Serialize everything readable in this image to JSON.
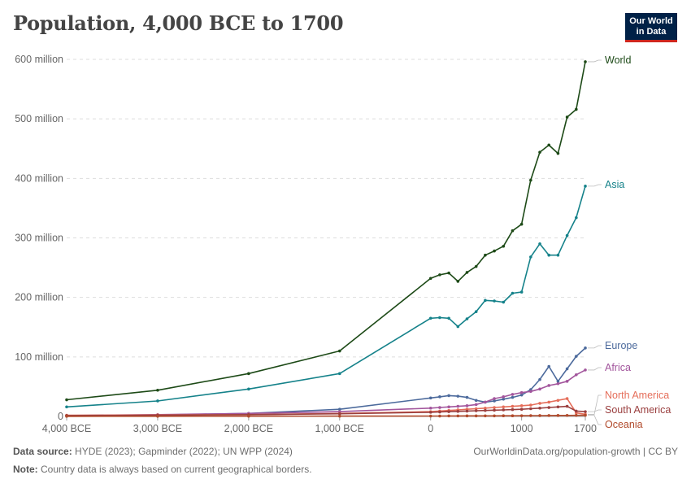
{
  "header": {
    "title": "Population, 4,000 BCE to 1700",
    "logo_line1": "Our World",
    "logo_line2": "in Data"
  },
  "footer": {
    "source_label": "Data source:",
    "source_text": "HYDE (2023); Gapminder (2022); UN WPP (2024)",
    "note_label": "Note:",
    "note_text": "Country data is always based on current geographical borders.",
    "url_text": "OurWorldinData.org/population-growth | CC BY"
  },
  "chart_data": {
    "type": "line",
    "title": "Population, 4,000 BCE to 1700",
    "xlabel": "",
    "ylabel": "",
    "x_ticks": [
      {
        "value": -4000,
        "label": "4,000 BCE"
      },
      {
        "value": -3000,
        "label": "3,000 BCE"
      },
      {
        "value": -2000,
        "label": "2,000 BCE"
      },
      {
        "value": -1000,
        "label": "1,000 BCE"
      },
      {
        "value": 0,
        "label": "0"
      },
      {
        "value": 1000,
        "label": "1000"
      },
      {
        "value": 1700,
        "label": "1700"
      }
    ],
    "y_ticks": [
      {
        "value": 0,
        "label": "0"
      },
      {
        "value": 100000000,
        "label": "100 million"
      },
      {
        "value": 200000000,
        "label": "200 million"
      },
      {
        "value": 300000000,
        "label": "300 million"
      },
      {
        "value": 400000000,
        "label": "400 million"
      },
      {
        "value": 500000000,
        "label": "500 million"
      },
      {
        "value": 600000000,
        "label": "600 million"
      }
    ],
    "xlim": [
      -4000,
      1700
    ],
    "ylim": [
      0,
      600000000
    ],
    "grid": "horizontal dashed",
    "legend": "right-end labels",
    "series": [
      {
        "name": "World",
        "color": "#1d4a17",
        "x": [
          -4000,
          -3000,
          -2000,
          -1000,
          0,
          100,
          200,
          300,
          400,
          500,
          600,
          700,
          800,
          900,
          1000,
          1100,
          1200,
          1300,
          1400,
          1500,
          1600,
          1700
        ],
        "y": [
          28000000,
          44000000,
          72000000,
          110000000,
          232000000,
          238000000,
          241000000,
          227000000,
          242000000,
          252000000,
          271000000,
          278000000,
          286000000,
          312000000,
          323000000,
          397000000,
          444000000,
          456000000,
          442000000,
          503000000,
          516000000,
          596000000
        ]
      },
      {
        "name": "Asia",
        "color": "#15828a",
        "x": [
          -4000,
          -3000,
          -2000,
          -1000,
          0,
          100,
          200,
          300,
          400,
          500,
          600,
          700,
          800,
          900,
          1000,
          1100,
          1200,
          1300,
          1400,
          1500,
          1600,
          1700
        ],
        "y": [
          16000000,
          26000000,
          46000000,
          72000000,
          165000000,
          166000000,
          165000000,
          151000000,
          164000000,
          176000000,
          195000000,
          194000000,
          192000000,
          207000000,
          209000000,
          268000000,
          290000000,
          271000000,
          271000000,
          304000000,
          334000000,
          387000000
        ]
      },
      {
        "name": "Europe",
        "color": "#4c6a9c",
        "x": [
          -4000,
          -3000,
          -2000,
          -1000,
          0,
          100,
          200,
          300,
          400,
          500,
          600,
          700,
          800,
          900,
          1000,
          1100,
          1200,
          1300,
          1400,
          1500,
          1600,
          1700
        ],
        "y": [
          1000000,
          2500000,
          5000000,
          12000000,
          31000000,
          33000000,
          35000000,
          34000000,
          32000000,
          27000000,
          24000000,
          26000000,
          29000000,
          32000000,
          36000000,
          45000000,
          62000000,
          84000000,
          59000000,
          80000000,
          101000000,
          115000000
        ]
      },
      {
        "name": "Africa",
        "color": "#a2559c",
        "x": [
          -4000,
          -3000,
          -2000,
          -1000,
          0,
          100,
          200,
          300,
          400,
          500,
          600,
          700,
          800,
          900,
          1000,
          1100,
          1200,
          1300,
          1400,
          1500,
          1600,
          1700
        ],
        "y": [
          1500000,
          3000000,
          5000000,
          8000000,
          14000000,
          15000000,
          16000000,
          17000000,
          18000000,
          20000000,
          24000000,
          30000000,
          33000000,
          37000000,
          40000000,
          42000000,
          46000000,
          52000000,
          55000000,
          59000000,
          70000000,
          78000000
        ]
      },
      {
        "name": "North America",
        "color": "#e56e5a",
        "x": [
          -4000,
          -3000,
          -2000,
          -1000,
          0,
          100,
          200,
          300,
          400,
          500,
          600,
          700,
          800,
          900,
          1000,
          1100,
          1200,
          1300,
          1400,
          1500,
          1600,
          1700
        ],
        "y": [
          2000000,
          2500000,
          3000000,
          5000000,
          8000000,
          9000000,
          10000000,
          11000000,
          12000000,
          13000000,
          14000000,
          15000000,
          16000000,
          17000000,
          18000000,
          19000000,
          22000000,
          24000000,
          27000000,
          30000000,
          6000000,
          3500000
        ]
      },
      {
        "name": "South America",
        "color": "#9a3f3f",
        "x": [
          -4000,
          -3000,
          -2000,
          -1000,
          0,
          100,
          200,
          300,
          400,
          500,
          600,
          700,
          800,
          900,
          1000,
          1100,
          1200,
          1300,
          1400,
          1500,
          1600,
          1700
        ],
        "y": [
          1500000,
          2000000,
          3000000,
          4500000,
          7000000,
          7500000,
          8000000,
          8500000,
          9000000,
          9500000,
          10000000,
          10500000,
          11000000,
          11500000,
          12000000,
          13000000,
          14000000,
          15000000,
          16000000,
          17000000,
          9000000,
          8000000
        ]
      },
      {
        "name": "Oceania",
        "color": "#b14a2b",
        "x": [
          -4000,
          -3000,
          -2000,
          -1000,
          0,
          100,
          200,
          300,
          400,
          500,
          600,
          700,
          800,
          900,
          1000,
          1100,
          1200,
          1300,
          1400,
          1500,
          1600,
          1700
        ],
        "y": [
          200000,
          300000,
          400000,
          500000,
          700000,
          700000,
          800000,
          800000,
          900000,
          900000,
          1000000,
          1000000,
          1100000,
          1100000,
          1200000,
          1300000,
          1400000,
          1500000,
          1600000,
          1700000,
          1800000,
          1900000
        ]
      }
    ]
  }
}
